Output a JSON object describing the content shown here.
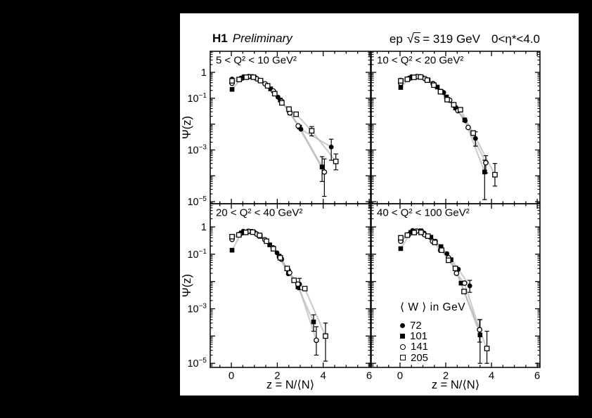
{
  "header": {
    "experiment": "H1",
    "status": "Preliminary",
    "beam": "ep",
    "sqrt_arg": "s",
    "energy": "= 319 GeV",
    "eta_range": "0<η*<4.0"
  },
  "axes": {
    "x_title": "z = N/⟨N⟩",
    "y_title": "Ψ(z)",
    "x_major_ticks": [
      0,
      2,
      4,
      6
    ],
    "x_minor_step": 0.5,
    "y_labeled_decades": [
      0,
      -1,
      -3,
      -5
    ],
    "y_tick_labels": [
      {
        "base": "1",
        "exp": ""
      },
      {
        "base": "10",
        "exp": "−1"
      },
      {
        "base": "10",
        "exp": "−3"
      },
      {
        "base": "10",
        "exp": "−5"
      }
    ],
    "x_range_display": [
      -1.0,
      6.1
    ],
    "y_range_display_log10": [
      -5.1,
      0.82
    ],
    "scale_y": "log"
  },
  "legend": {
    "title": "⟨ W ⟩ in GeV",
    "entries": [
      {
        "marker": "filled-circle",
        "label": "72"
      },
      {
        "marker": "filled-square",
        "label": "101"
      },
      {
        "marker": "open-circle",
        "label": "141"
      },
      {
        "marker": "open-square",
        "label": "205"
      }
    ]
  },
  "style": {
    "background": "#000000",
    "paper": "#ffffff",
    "series_line_color": "#b3b3b3",
    "marker_color": "#000000"
  },
  "chart_data": [
    {
      "id": "q2-5-10",
      "type": "scatter",
      "title": "5 < Q² < 10 GeV²",
      "xlabel": "z = N/⟨N⟩",
      "ylabel": "Ψ(z)",
      "series": [
        {
          "name": "72",
          "w_gev": 72,
          "marker": "filled-circle",
          "points": [
            [
              0.03,
              0.55
            ],
            [
              0.53,
              0.68
            ],
            [
              1.03,
              0.65
            ],
            [
              1.53,
              0.33
            ],
            [
              2.03,
              0.11
            ],
            [
              2.53,
              0.028
            ],
            [
              3.03,
              0.0063
            ],
            [
              4.35,
              0.0013
            ]
          ],
          "error_bars": [
            [
              4.35,
              0.0004,
              0.0026
            ]
          ]
        },
        {
          "name": "101",
          "w_gev": 101,
          "marker": "filled-square",
          "points": [
            [
              0.03,
              0.22
            ],
            [
              0.45,
              0.6
            ],
            [
              0.87,
              0.69
            ],
            [
              1.29,
              0.47
            ],
            [
              1.71,
              0.23
            ],
            [
              2.13,
              0.085
            ],
            [
              2.55,
              0.027
            ],
            [
              2.97,
              0.0076
            ],
            [
              3.95,
              0.00022
            ]
          ],
          "error_bars": [
            [
              3.95,
              6e-05,
              0.00055
            ]
          ]
        },
        {
          "name": "141",
          "w_gev": 141,
          "marker": "open-circle",
          "points": [
            [
              0.03,
              0.38
            ],
            [
              0.39,
              0.55
            ],
            [
              0.75,
              0.69
            ],
            [
              1.11,
              0.56
            ],
            [
              1.47,
              0.36
            ],
            [
              1.83,
              0.19
            ],
            [
              2.19,
              0.076
            ],
            [
              2.55,
              0.027
            ],
            [
              2.91,
              0.0085
            ],
            [
              4.05,
              0.00014
            ]
          ],
          "error_bars": [
            [
              4.05,
              1.6e-05,
              0.00045
            ]
          ]
        },
        {
          "name": "205",
          "w_gev": 205,
          "marker": "open-square",
          "points": [
            [
              0.03,
              0.47
            ],
            [
              0.34,
              0.53
            ],
            [
              0.65,
              0.65
            ],
            [
              0.96,
              0.65
            ],
            [
              1.27,
              0.48
            ],
            [
              1.58,
              0.3
            ],
            [
              1.89,
              0.15
            ],
            [
              2.2,
              0.066
            ],
            [
              2.51,
              0.038
            ],
            [
              2.82,
              0.024
            ],
            [
              3.5,
              0.0055
            ],
            [
              4.55,
              0.00036
            ]
          ],
          "error_bars": [
            [
              3.5,
              0.0035,
              0.008
            ],
            [
              4.55,
              0.00017,
              0.0007
            ]
          ]
        }
      ]
    },
    {
      "id": "q2-10-20",
      "type": "scatter",
      "title": "10 < Q² < 20 GeV²",
      "xlabel": "z = N/⟨N⟩",
      "ylabel": "Ψ(z)",
      "series": [
        {
          "name": "72",
          "w_gev": 72,
          "marker": "filled-circle",
          "points": [
            [
              0.03,
              0.5
            ],
            [
              0.5,
              0.68
            ],
            [
              0.97,
              0.645
            ],
            [
              1.44,
              0.38
            ],
            [
              1.91,
              0.166
            ],
            [
              2.38,
              0.05
            ],
            [
              2.85,
              0.0135
            ],
            [
              3.3,
              0.0028
            ]
          ],
          "error_bars": [
            [
              3.3,
              0.0014,
              0.005
            ]
          ]
        },
        {
          "name": "101",
          "w_gev": 101,
          "marker": "filled-square",
          "points": [
            [
              0.03,
              0.26
            ],
            [
              0.43,
              0.6
            ],
            [
              0.83,
              0.69
            ],
            [
              1.23,
              0.5
            ],
            [
              1.63,
              0.27
            ],
            [
              2.03,
              0.112
            ],
            [
              2.43,
              0.042
            ],
            [
              2.83,
              0.0145
            ],
            [
              3.7,
              0.00014
            ]
          ],
          "error_bars": [
            [
              3.7,
              1.2e-05,
              0.0004
            ]
          ]
        },
        {
          "name": "141",
          "w_gev": 141,
          "marker": "open-circle",
          "points": [
            [
              0.03,
              0.38
            ],
            [
              0.37,
              0.56
            ],
            [
              0.73,
              0.69
            ],
            [
              1.09,
              0.575
            ],
            [
              1.45,
              0.36
            ],
            [
              1.81,
              0.182
            ],
            [
              2.17,
              0.084
            ],
            [
              2.53,
              0.033
            ],
            [
              2.98,
              0.0074
            ],
            [
              3.75,
              0.00032
            ]
          ],
          "error_bars": [
            [
              3.75,
              0.00013,
              0.0006
            ]
          ]
        },
        {
          "name": "205",
          "w_gev": 205,
          "marker": "open-square",
          "points": [
            [
              0.03,
              0.47
            ],
            [
              0.32,
              0.54
            ],
            [
              0.61,
              0.64
            ],
            [
              0.9,
              0.66
            ],
            [
              1.19,
              0.5
            ],
            [
              1.48,
              0.32
            ],
            [
              1.77,
              0.178
            ],
            [
              2.06,
              0.088
            ],
            [
              2.35,
              0.056
            ],
            [
              2.64,
              0.036
            ],
            [
              3.2,
              0.0045
            ],
            [
              4.15,
              0.00011
            ]
          ],
          "error_bars": [
            [
              4.15,
              4e-05,
              0.0003
            ]
          ]
        }
      ]
    },
    {
      "id": "q2-20-40",
      "type": "scatter",
      "title": "20 < Q² < 40 GeV²",
      "xlabel": "z = N/⟨N⟩",
      "ylabel": "Ψ(z)",
      "series": [
        {
          "name": "72",
          "w_gev": 72,
          "marker": "filled-circle",
          "points": [
            [
              0.05,
              0.45
            ],
            [
              0.52,
              0.7
            ],
            [
              1.01,
              0.63
            ],
            [
              1.5,
              0.32
            ],
            [
              1.99,
              0.112
            ],
            [
              2.48,
              0.019
            ],
            [
              2.97,
              0.008
            ]
          ],
          "error_bars": [
            [
              2.97,
              0.005,
              0.013
            ]
          ]
        },
        {
          "name": "101",
          "w_gev": 101,
          "marker": "filled-square",
          "points": [
            [
              0.03,
              0.14
            ],
            [
              0.44,
              0.6
            ],
            [
              0.85,
              0.69
            ],
            [
              1.26,
              0.45
            ],
            [
              1.67,
              0.22
            ],
            [
              2.08,
              0.085
            ],
            [
              2.49,
              0.024
            ],
            [
              2.9,
              0.0063
            ],
            [
              3.58,
              0.00033
            ]
          ],
          "error_bars": [
            [
              3.58,
              0.00015,
              0.0006
            ]
          ]
        },
        {
          "name": "141",
          "w_gev": 141,
          "marker": "open-circle",
          "points": [
            [
              0.03,
              0.35
            ],
            [
              0.38,
              0.55
            ],
            [
              0.74,
              0.69
            ],
            [
              1.1,
              0.55
            ],
            [
              1.46,
              0.34
            ],
            [
              1.82,
              0.17
            ],
            [
              2.18,
              0.066
            ],
            [
              2.54,
              0.021
            ],
            [
              2.9,
              0.008
            ],
            [
              3.7,
              7e-05
            ]
          ],
          "error_bars": [
            [
              3.7,
              2e-05,
              0.00022
            ]
          ]
        },
        {
          "name": "205",
          "w_gev": 205,
          "marker": "open-square",
          "points": [
            [
              0.03,
              0.44
            ],
            [
              0.33,
              0.51
            ],
            [
              0.63,
              0.63
            ],
            [
              0.93,
              0.645
            ],
            [
              1.23,
              0.49
            ],
            [
              1.53,
              0.3
            ],
            [
              1.83,
              0.158
            ],
            [
              2.13,
              0.074
            ],
            [
              2.43,
              0.03
            ],
            [
              2.73,
              0.011
            ],
            [
              3.2,
              0.0055
            ],
            [
              4.1,
              0.0001
            ]
          ],
          "error_bars": [
            [
              4.1,
              1.2e-05,
              0.0003
            ]
          ]
        }
      ]
    },
    {
      "id": "q2-40-100",
      "type": "scatter",
      "title": "40 < Q² < 100 GeV²",
      "xlabel": "z = N/⟨N⟩",
      "ylabel": "Ψ(z)",
      "series": [
        {
          "name": "72",
          "w_gev": 72,
          "marker": "filled-circle",
          "points": [
            [
              0.05,
              0.3
            ],
            [
              0.55,
              0.74
            ],
            [
              1.05,
              0.6
            ],
            [
              1.55,
              0.3
            ],
            [
              2.05,
              0.105
            ],
            [
              2.55,
              0.028
            ],
            [
              3.05,
              0.0069
            ]
          ],
          "error_bars": [
            [
              3.05,
              0.004,
              0.011
            ]
          ]
        },
        {
          "name": "101",
          "w_gev": 101,
          "marker": "filled-square",
          "points": [
            [
              0.03,
              0.16
            ],
            [
              0.47,
              0.63
            ],
            [
              0.91,
              0.72
            ],
            [
              1.35,
              0.42
            ],
            [
              1.79,
              0.19
            ],
            [
              2.23,
              0.063
            ],
            [
              2.67,
              0.0087
            ],
            [
              3.5,
              0.00011
            ]
          ],
          "error_bars": [
            [
              3.5,
              1e-05,
              0.0004
            ]
          ]
        },
        {
          "name": "141",
          "w_gev": 141,
          "marker": "open-circle",
          "points": [
            [
              0.03,
              0.3
            ],
            [
              0.37,
              0.52
            ],
            [
              0.72,
              0.7
            ],
            [
              1.07,
              0.52
            ],
            [
              1.42,
              0.3
            ],
            [
              1.77,
              0.14
            ],
            [
              2.12,
              0.074
            ],
            [
              2.47,
              0.02
            ],
            [
              2.82,
              0.0087
            ],
            [
              3.48,
              0.00017
            ]
          ],
          "error_bars": [
            [
              3.48,
              6e-05,
              0.0004
            ]
          ]
        },
        {
          "name": "205",
          "w_gev": 205,
          "marker": "open-square",
          "points": [
            [
              0.03,
              0.4
            ],
            [
              0.32,
              0.5
            ],
            [
              0.62,
              0.62
            ],
            [
              0.92,
              0.63
            ],
            [
              1.22,
              0.46
            ],
            [
              1.52,
              0.27
            ],
            [
              1.82,
              0.14
            ],
            [
              2.12,
              0.06
            ],
            [
              2.42,
              0.03
            ],
            [
              2.8,
              0.0043
            ],
            [
              3.8,
              3.5e-05
            ]
          ],
          "error_bars": [
            [
              3.8,
              1e-05,
              0.00015
            ]
          ]
        }
      ]
    }
  ]
}
